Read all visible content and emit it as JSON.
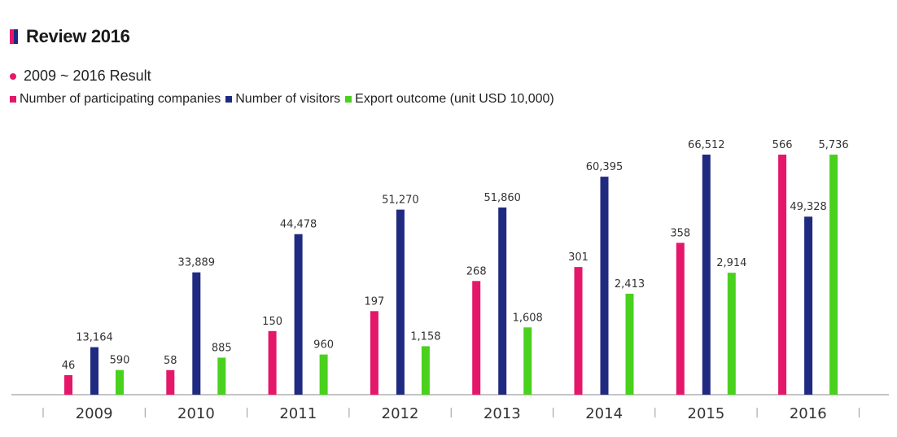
{
  "header": {
    "title": "Review 2016",
    "title_colors": [
      "#e5176a",
      "#1f2a80"
    ]
  },
  "subtitle": {
    "text": "2009 ~ 2016 Result",
    "dot_color": "#e5176a"
  },
  "chart_data": {
    "type": "bar",
    "categories": [
      "2009",
      "2010",
      "2011",
      "2012",
      "2013",
      "2014",
      "2015",
      "2016"
    ],
    "series": [
      {
        "name": "Number of participating companies",
        "color": "#e5176a",
        "values": [
          46,
          58,
          150,
          197,
          268,
          301,
          358,
          566
        ],
        "labels": [
          "46",
          "58",
          "150",
          "197",
          "268",
          "301",
          "358",
          "566"
        ]
      },
      {
        "name": "Number of visitors",
        "color": "#1f2a80",
        "values": [
          13164,
          33889,
          44478,
          51270,
          51860,
          60395,
          66512,
          49328
        ],
        "labels": [
          "13,164",
          "33,889",
          "44,478",
          "51,270",
          "51,860",
          "60,395",
          "66,512",
          "49,328"
        ]
      },
      {
        "name": "Export outcome (unit USD 10,000)",
        "color": "#49d11e",
        "values": [
          590,
          885,
          960,
          1158,
          1608,
          2413,
          2914,
          5736
        ],
        "labels": [
          "590",
          "885",
          "960",
          "1,158",
          "1,608",
          "2,413",
          "2,914",
          "5,736"
        ]
      }
    ],
    "axis_color": "#888888"
  }
}
